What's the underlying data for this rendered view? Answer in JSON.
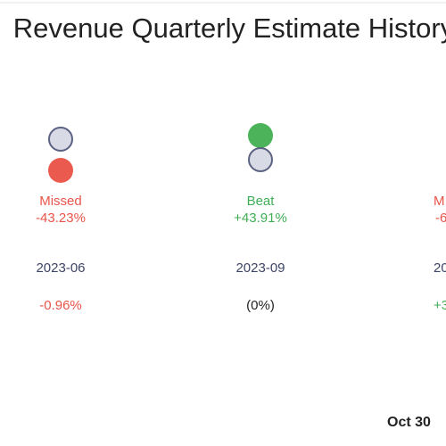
{
  "header": {
    "title": "Revenue Quarterly Estimate History"
  },
  "columns": [
    {
      "result": "Missed",
      "surprise": "-43.23%",
      "period": "2023-06",
      "change": "-0.96%"
    },
    {
      "result": "Beat",
      "surprise": "+43.91%",
      "period": "2023-09",
      "change": "(0%)"
    },
    {
      "result": "M",
      "surprise": "-6",
      "period": "20",
      "change": "+3"
    }
  ],
  "footer": {
    "date": "Oct 30"
  }
}
